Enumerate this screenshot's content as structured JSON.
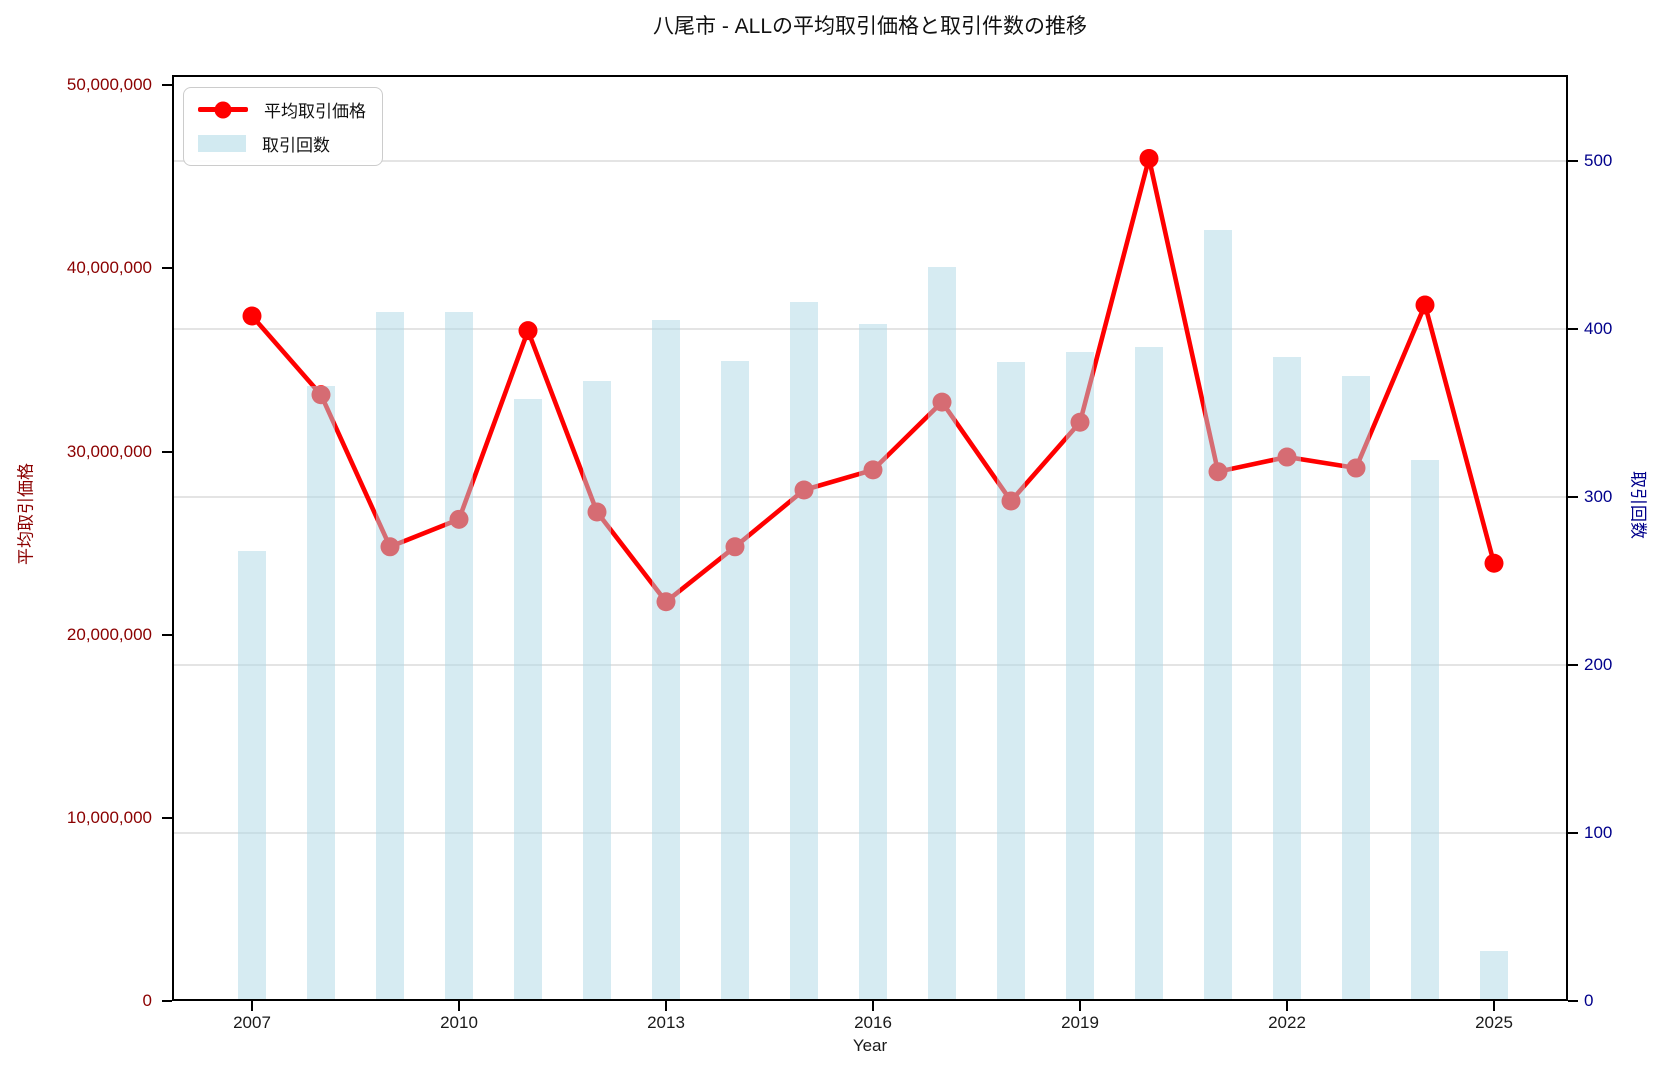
{
  "chart_data": {
    "type": "line+bar",
    "title": "八尾市 - ALLの平均取引価格と取引件数の推移",
    "xlabel": "Year",
    "legend_position": "upper left",
    "grid": {
      "color": "#e4e4e4",
      "horizontal_only": true,
      "at_right_axis_ticks": [
        100,
        200,
        300,
        400,
        500
      ]
    },
    "x": [
      2007,
      2008,
      2009,
      2010,
      2011,
      2012,
      2013,
      2014,
      2015,
      2016,
      2017,
      2018,
      2019,
      2020,
      2021,
      2022,
      2023,
      2024,
      2025
    ],
    "x_tick_labels": [
      "2007",
      "2010",
      "2013",
      "2016",
      "2019",
      "2022",
      "2025"
    ],
    "x_tick_years": [
      2007,
      2010,
      2013,
      2016,
      2019,
      2022,
      2025
    ],
    "left_axis": {
      "label": "平均取引価格",
      "color": "#8B0000",
      "tick_values": [
        0,
        10000000,
        20000000,
        30000000,
        40000000,
        50000000
      ],
      "tick_labels": [
        "0",
        "10,000,000",
        "20,000,000",
        "30,000,000",
        "40,000,000",
        "50,000,000"
      ],
      "range": [
        0,
        50560000
      ]
    },
    "right_axis": {
      "label": "取引回数",
      "color": "#00008B",
      "tick_values": [
        0,
        100,
        200,
        300,
        400,
        500
      ],
      "tick_labels": [
        "0",
        "100",
        "200",
        "300",
        "400",
        "500"
      ],
      "range": [
        0,
        551
      ]
    },
    "series": [
      {
        "name": "平均取引価格",
        "type": "line",
        "axis": "left",
        "color": "#ff0000",
        "marker": "circle",
        "values": [
          37400000,
          33100000,
          24800000,
          26300000,
          36600000,
          26700000,
          21800000,
          24800000,
          27900000,
          29000000,
          32700000,
          27300000,
          31600000,
          46000000,
          28900000,
          29700000,
          29100000,
          38000000,
          23900000
        ]
      },
      {
        "name": "取引回数",
        "type": "bar",
        "axis": "right",
        "color": "#ADD8E6",
        "opacity": 0.5,
        "values": [
          268,
          366,
          410,
          410,
          358,
          369,
          405,
          381,
          416,
          403,
          437,
          380,
          386,
          389,
          459,
          383,
          372,
          322,
          30
        ]
      }
    ]
  }
}
